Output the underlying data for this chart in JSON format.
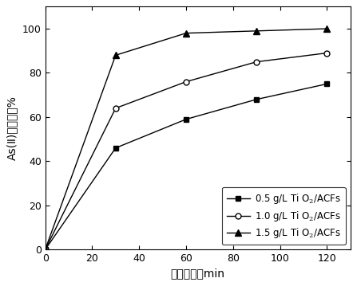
{
  "series": [
    {
      "label": "0.5 g/L Ti O$_2$/ACFs",
      "x": [
        0,
        30,
        60,
        90,
        120
      ],
      "y": [
        0,
        46,
        59,
        68,
        75
      ],
      "marker": "s",
      "markersize": 5,
      "markerfacecolor": "black",
      "markeredgecolor": "black",
      "color": "black",
      "linestyle": "-",
      "linewidth": 1.0
    },
    {
      "label": "1.0 g/L Ti O$_2$/ACFs",
      "x": [
        0,
        30,
        60,
        90,
        120
      ],
      "y": [
        0,
        64,
        76,
        85,
        89
      ],
      "marker": "o",
      "markersize": 5,
      "markerfacecolor": "white",
      "markeredgecolor": "black",
      "color": "black",
      "linestyle": "-",
      "linewidth": 1.0
    },
    {
      "label": "1.5 g/L Ti O$_2$/ACFs",
      "x": [
        0,
        30,
        60,
        90,
        120
      ],
      "y": [
        0,
        88,
        98,
        99,
        100
      ],
      "marker": "^",
      "markersize": 6,
      "markerfacecolor": "black",
      "markeredgecolor": "black",
      "color": "black",
      "linestyle": "-",
      "linewidth": 1.0
    }
  ],
  "xlabel": "光照时间，min",
  "ylabel": "As(Ⅱ)氧化率，%",
  "xlim": [
    0,
    130
  ],
  "ylim": [
    0,
    110
  ],
  "xticks": [
    0,
    20,
    40,
    60,
    80,
    100,
    120
  ],
  "yticks": [
    0,
    20,
    40,
    60,
    80,
    100
  ],
  "legend_loc": "lower right",
  "legend_bbox": null,
  "background_color": "#ffffff",
  "fontsize_label": 10,
  "fontsize_tick": 9,
  "fontsize_legend": 8.5
}
